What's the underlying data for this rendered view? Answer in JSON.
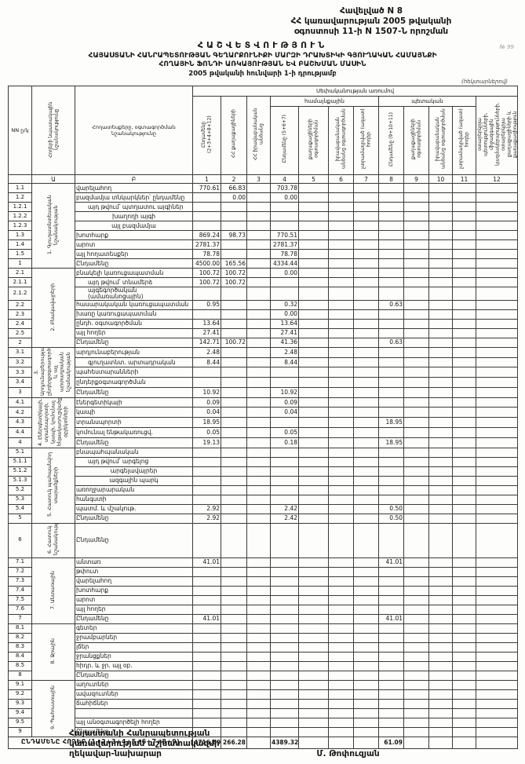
{
  "header": {
    "appendix": "Հավելված N 8",
    "decree_line1": "ՀՀ կառավարության 2005 թվականի",
    "decree_line2": "օգոստոսի 11-ի N 1507-Ն որոշման",
    "corner_mark": "№ 99",
    "title": "ՀԱՇՎԵՏՎՈՒԹՅՈՒՆ",
    "subtitle1": "ՀԱՅԱՍՏԱՆԻ ՀԱՆՐԱՊԵՏՈՒԹՅԱՆ ԳԵՂԱՐՔՈՒՆԻՔԻ ՄԱՐԶԻ ԴՐԱԽՏԻԿԻ ԳՅՈՒՂԱԿԱՆ ՀԱՄԱՅՆՔԻ",
    "subtitle2": "ՀՈՂԱՅԻՆ ՖՈՆԴԻ ԱՌԿԱՅՈՒԹՅԱՆ ԵՎ ԲԱՇԽՄԱՆ ՄԱՍԻՆ",
    "date_line": "2005 թվականի հունվարի 1-ի դրությամբ",
    "units_note": "(հեկտարներով)"
  },
  "table": {
    "ownership_band": "Սեփականության առումով",
    "community_band": "համայնքային",
    "state_band": "պետական",
    "columns": {
      "nn": "NN ը/կ",
      "purpose": "Հողերի նպատակային նշանակությունը",
      "landtypes": "Հողատեսքերը, օգտագործման նշանակությունը",
      "c1": "Ընդամենը (2+3+4+8+12)",
      "c2": "ՀՀ քաղաքացիների",
      "c3": "ՀՀ իրավաբանական անձանց",
      "c4": "Ընդամենը (5+6+7)",
      "c5": "քաղաքացիների օգտագործման",
      "c6": "իրավաբանական անձանց օգտագործման",
      "c7": "չտրամադրված (ազատ) հողեր",
      "c8": "Ընդամենը (9+10+11)",
      "c9": "քաղաքացիների օգտագործման",
      "c10": "իրավաբանական անձանց օգտագործման",
      "c11": "չտրամադրված (ազատ) հողեր",
      "c12": "օտարերկրյա պետությունների, միջազգային կազմակերպությունների, օտարերկրյա քաղաքացիների և քաղաքացիություն չունեցող անձանց"
    },
    "code_row": [
      "",
      "Ա",
      "Բ",
      "1",
      "2",
      "3",
      "4",
      "5",
      "6",
      "7",
      "8",
      "9",
      "10",
      "11",
      "12"
    ],
    "sections": [
      {
        "label": "1. Գյուղատնտեսական նշանակության",
        "rows": [
          {
            "num": "1.1",
            "label": "վարելահող",
            "indent": 0,
            "values": {
              "1": "770.61",
              "2": "66.83",
              "4": "703.78"
            }
          },
          {
            "num": "1.2",
            "label": "բազմամյա տնկարկներ՝ ընդամենը",
            "indent": 0,
            "values": {
              "2": "0.00",
              "4": "0.00"
            }
          },
          {
            "num": "1.2.1",
            "label": "այդ թվում՝ պտղատու այգիներ",
            "indent": 1,
            "values": {}
          },
          {
            "num": "1.2.2",
            "label": "խաղողի այգի",
            "indent": 2,
            "values": {}
          },
          {
            "num": "1.2.3",
            "label": "այլ բազմամյա",
            "indent": 2,
            "values": {}
          },
          {
            "num": "1.3",
            "label": "խոտհարք",
            "indent": 0,
            "values": {
              "1": "869.24",
              "2": "98.73",
              "4": "770.51"
            }
          },
          {
            "num": "1.4",
            "label": "արոտ",
            "indent": 0,
            "values": {
              "1": "2781.37",
              "4": "2781.37"
            }
          },
          {
            "num": "1.5",
            "label": "այլ հողատեսքեր",
            "indent": 0,
            "values": {
              "1": "78.78",
              "4": "78.78"
            }
          },
          {
            "num": "1",
            "label": "Ընդամենը",
            "indent": 0,
            "values": {
              "1": "4500.00",
              "2": "165.56",
              "4": "4334.44"
            }
          }
        ]
      },
      {
        "label": "2. Բնակավայրերի",
        "rows": [
          {
            "num": "2.1",
            "label": "բնակելի կառուցապատման",
            "indent": 0,
            "values": {
              "1": "100.72",
              "2": "100.72",
              "4": "0.00"
            }
          },
          {
            "num": "2.1.1",
            "label": "այդ թվում՝ տնամերձ",
            "indent": 1,
            "values": {
              "1": "100.72",
              "2": "100.72"
            }
          },
          {
            "num": "2.1.2",
            "label": "այգեգործական (ամառանոցային)",
            "indent": 1,
            "values": {}
          },
          {
            "num": "2.2",
            "label": "հասարակական կառուցապատման",
            "indent": 0,
            "values": {
              "1": "0.95",
              "4": "0.32",
              "8": "0.63"
            }
          },
          {
            "num": "2.3",
            "label": "խառը կառուցապատման",
            "indent": 0,
            "values": {
              "4": "0.00"
            }
          },
          {
            "num": "2.4",
            "label": "ընդհ. օգտագործման",
            "indent": 0,
            "values": {
              "1": "13.64",
              "4": "13.64"
            }
          },
          {
            "num": "2.5",
            "label": "այլ հողեր",
            "indent": 0,
            "values": {
              "1": "27.41",
              "4": "27.41"
            }
          },
          {
            "num": "2",
            "label": "Ընդամենը",
            "indent": 0,
            "values": {
              "1": "142.71",
              "2": "100.72",
              "4": "41.36",
              "8": "0.63"
            }
          }
        ]
      },
      {
        "label": "3. Արդյունաբերության, ընդերքօգտագործման և այլ արտադրական նշանակության",
        "rows": [
          {
            "num": "3.1",
            "label": "արդյունաբերության",
            "indent": 0,
            "values": {
              "1": "2.48",
              "4": "2.48"
            }
          },
          {
            "num": "3.2",
            "label": "գյուղատնտ. արտադրական",
            "indent": 1,
            "values": {
              "1": "8.44",
              "4": "8.44"
            }
          },
          {
            "num": "3.3",
            "label": "պահեստարանների",
            "indent": 0,
            "values": {}
          },
          {
            "num": "3.4",
            "label": "ընդերքօգտագործման",
            "indent": 0,
            "values": {}
          },
          {
            "num": "3",
            "label": "Ընդամենը",
            "indent": 0,
            "values": {
              "1": "10.92",
              "4": "10.92"
            }
          }
        ]
      },
      {
        "label": "4. Էներգետիկայի, տրանսպորտի, կապի, կոմունալ ենթակառուցվածքների օբյեկտների",
        "rows": [
          {
            "num": "4.1",
            "label": "էներգետիկայի",
            "indent": 0,
            "values": {
              "1": "0.09",
              "4": "0.09"
            }
          },
          {
            "num": "4.2",
            "label": "կապի",
            "indent": 0,
            "values": {
              "1": "0.04",
              "4": "0.04"
            }
          },
          {
            "num": "4.3",
            "label": "տրանսպորտի",
            "indent": 0,
            "values": {
              "1": "18.95",
              "8": "18.95"
            }
          },
          {
            "num": "4.4",
            "label": "կոմունալ ենթակառուցվ.",
            "indent": 0,
            "values": {
              "1": "0.05",
              "4": "0.05"
            }
          },
          {
            "num": "4",
            "label": "Ընդամենը",
            "indent": 0,
            "values": {
              "1": "19.13",
              "4": "0.18",
              "8": "18.95"
            }
          }
        ]
      },
      {
        "label": "5. Հատուկ պահպանվող տարածքների",
        "rows": [
          {
            "num": "5.1",
            "label": "բնապահպանական",
            "indent": 0,
            "values": {}
          },
          {
            "num": "5.1.1",
            "label": "այդ թվում՝ արգելոց",
            "indent": 1,
            "values": {}
          },
          {
            "num": "5.1.2",
            "label": "արգելավայրեր",
            "indent": 2,
            "values": {}
          },
          {
            "num": "5.1.3",
            "label": "ազգային պարկ",
            "indent": 2,
            "values": {}
          },
          {
            "num": "5.2",
            "label": "առողջարարական",
            "indent": 0,
            "values": {}
          },
          {
            "num": "5.3",
            "label": "հանգստի",
            "indent": 0,
            "values": {}
          },
          {
            "num": "5.4",
            "label": "պատմ. և մշակութ.",
            "indent": 0,
            "values": {
              "1": "2.92",
              "4": "2.42",
              "8": "0.50"
            }
          },
          {
            "num": "5",
            "label": "Ընդամենը",
            "indent": 0,
            "values": {
              "1": "2.92",
              "4": "2.42",
              "8": "0.50"
            }
          }
        ]
      },
      {
        "label": "6. Հատուկ նշանակության",
        "tall": 44,
        "rows": [
          {
            "num": "6",
            "label": "Ընդամենը",
            "indent": 0,
            "values": {}
          }
        ]
      },
      {
        "label": "7. Անտառային",
        "rows": [
          {
            "num": "7.1",
            "label": "անտառ",
            "indent": 0,
            "values": {
              "1": "41.01",
              "8": "41.01"
            }
          },
          {
            "num": "7.2",
            "label": "թփուտ",
            "indent": 0,
            "values": {}
          },
          {
            "num": "7.3",
            "label": "վարելահող",
            "indent": 0,
            "values": {}
          },
          {
            "num": "7.4",
            "label": "խոտհարք",
            "indent": 0,
            "values": {}
          },
          {
            "num": "7.5",
            "label": "արոտ",
            "indent": 0,
            "values": {}
          },
          {
            "num": "7.6",
            "label": "այլ հողեր",
            "indent": 0,
            "values": {}
          },
          {
            "num": "7",
            "label": "Ընդամենը",
            "indent": 0,
            "values": {
              "1": "41.01",
              "8": "41.01"
            }
          }
        ]
      },
      {
        "label": "8. Ջրային",
        "rows": [
          {
            "num": "8.1",
            "label": "գետեր",
            "indent": 0,
            "values": {}
          },
          {
            "num": "8.2",
            "label": "ջրամբարներ",
            "indent": 0,
            "values": {}
          },
          {
            "num": "8.3",
            "label": "լճեր",
            "indent": 0,
            "values": {}
          },
          {
            "num": "8.4",
            "label": "ջրանցքներ",
            "indent": 0,
            "values": {}
          },
          {
            "num": "8.5",
            "label": "հիդր. և ջր. այլ օբ.",
            "indent": 0,
            "values": {}
          },
          {
            "num": "8",
            "label": "Ընդամենը",
            "indent": 0,
            "values": {}
          }
        ]
      },
      {
        "label": "9. Պահուստային",
        "rows": [
          {
            "num": "9.1",
            "label": "աղուտներ",
            "indent": 0,
            "values": {}
          },
          {
            "num": "9.2",
            "label": "ավազուտներ",
            "indent": 0,
            "values": {}
          },
          {
            "num": "9.3",
            "label": "ճահիճներ",
            "indent": 0,
            "values": {}
          },
          {
            "num": "9.4",
            "label": "",
            "indent": 0,
            "values": {}
          },
          {
            "num": "9.5",
            "label": "այլ անօգտագործելի հողեր",
            "indent": 0,
            "values": {}
          },
          {
            "num": "9",
            "label": "Ընդամենը",
            "indent": 0,
            "values": {}
          }
        ]
      }
    ],
    "grand_total": {
      "label": "ԸՆԴԱՄԵՆԸ ՀՈՂԵՐ (1+2+3+4+5+6+7+8+9)",
      "values": {
        "1": "4716.69",
        "2": "266.28",
        "4": "4389.32",
        "8": "61.09"
      }
    }
  },
  "footer": {
    "sig_line1": "Հայաստանի Հանրապետության",
    "sig_line2": "կառավարության աշխատակազմի",
    "sig_line3": "ղեկավար-նախարար",
    "signature": "Մ. Թոփուզյան"
  }
}
